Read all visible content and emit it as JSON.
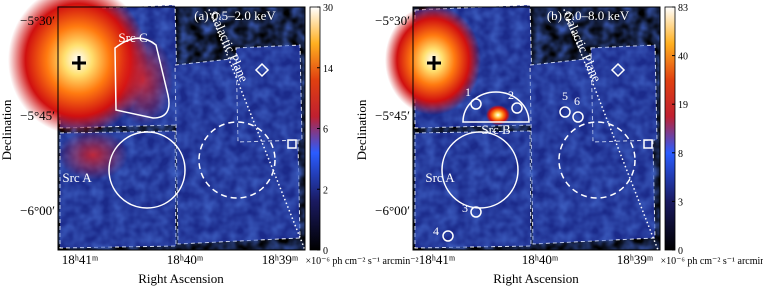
{
  "panels": [
    {
      "label": "(a) 0.5–2.0 keV",
      "colorbar_ticks": [
        0,
        2,
        6,
        14,
        30
      ],
      "plane": "Galactic Plane",
      "sources": [
        "Src C",
        "Src A"
      ]
    },
    {
      "label": "(b) 2.0–8.0 keV",
      "colorbar_ticks": [
        0,
        3,
        8,
        19,
        40,
        83
      ],
      "plane": "Galactic Plane",
      "sources": [
        "Src A",
        "Src B"
      ],
      "numbers": [
        "1",
        "2",
        "3",
        "4",
        "5",
        "6"
      ]
    }
  ],
  "y_label": "Declination",
  "y_ticks": [
    "−5°30′",
    "−5°45′",
    "−6°00′"
  ],
  "x_label": "Right Ascension",
  "x_ticks": [
    "18ʰ41ᵐ",
    "18ʰ40ᵐ",
    "18ʰ39ᵐ"
  ],
  "unit": "×10⁻⁶ ph cm⁻² s⁻¹ arcmin⁻²"
}
